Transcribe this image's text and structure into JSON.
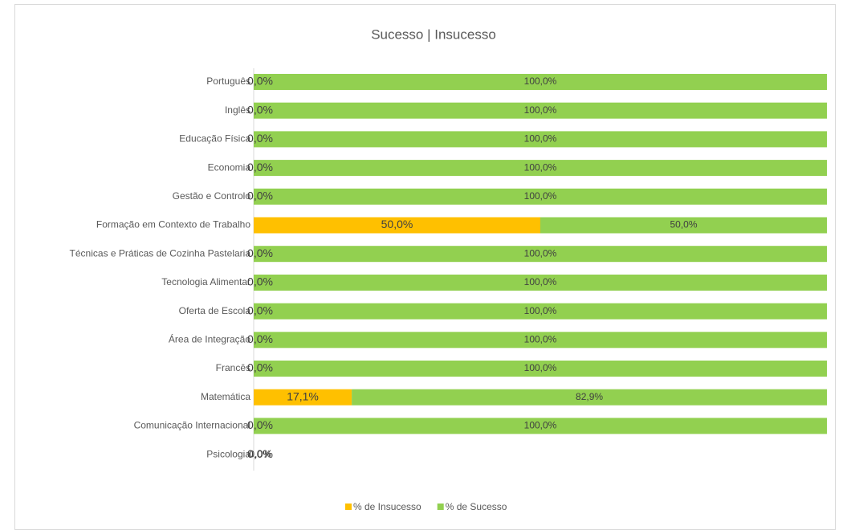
{
  "chart_data": {
    "type": "stacked-bar-horizontal",
    "title": "Sucesso | Insucesso",
    "categories": [
      "Português",
      "Inglês",
      "Educação Física",
      "Economia",
      "Gestão e Controlo",
      "Formação em Contexto de Trabalho",
      "Técnicas e Práticas de Cozinha Pastelaria",
      "Tecnologia Alimentar",
      "Oferta de Escola",
      "Área de Integração",
      "Francês",
      "Matemática",
      "Comunicação Internacional",
      "Psicologia"
    ],
    "series": [
      {
        "name": "% de Insucesso",
        "color": "#ffc000",
        "values": [
          0,
          0,
          0,
          0,
          0,
          50,
          0,
          0,
          0,
          0,
          0,
          17.1,
          0,
          0
        ],
        "value_labels": [
          "0,0%",
          "0,0%",
          "0,0%",
          "0,0%",
          "0,0%",
          "50,0%",
          "0,0%",
          "0,0%",
          "0,0%",
          "0,0%",
          "0,0%",
          "17,1%",
          "0,0%",
          "0,0%"
        ]
      },
      {
        "name": "% de Sucesso",
        "color": "#92d050",
        "values": [
          100,
          100,
          100,
          100,
          100,
          50,
          100,
          100,
          100,
          100,
          100,
          82.9,
          100,
          0
        ],
        "value_labels": [
          "100,0%",
          "100,0%",
          "100,0%",
          "100,0%",
          "100,0%",
          "50,0%",
          "100,0%",
          "100,0%",
          "100,0%",
          "100,0%",
          "100,0%",
          "82,9%",
          "100,0%",
          "0,0%"
        ]
      }
    ],
    "xlim": [
      0,
      100
    ],
    "legend": "bottom"
  }
}
